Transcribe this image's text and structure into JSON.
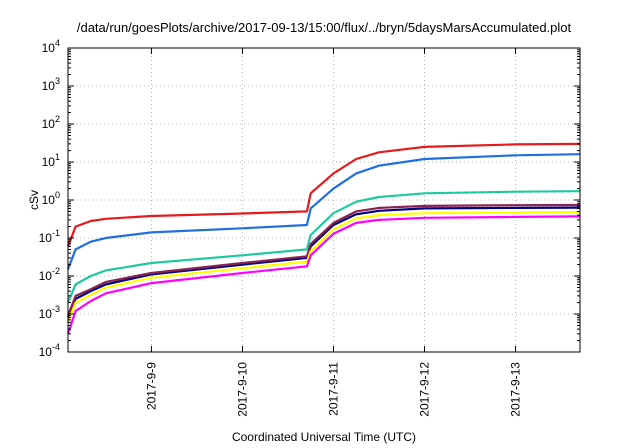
{
  "chart_data": {
    "type": "line",
    "title": "/data/run/goesPlots/archive/2017-09-13/15:00/flux/../bryn/5daysMarsAccumulated.plot",
    "xlabel": "Coordinated Universal Time (UTC)",
    "ylabel": "cSv",
    "yscale": "log",
    "ylim": [
      0.0001,
      10000
    ],
    "xlim": [
      "2017-09-08T02:00",
      "2017-09-13T17:00"
    ],
    "grid": true,
    "x_ticks": [
      "2017-9-9",
      "2017-9-10",
      "2017-9-11",
      "2017-9-12",
      "2017-9-13"
    ],
    "y_ticks": [
      {
        "base": "10",
        "exp": "-4"
      },
      {
        "base": "10",
        "exp": "-3"
      },
      {
        "base": "10",
        "exp": "-2"
      },
      {
        "base": "10",
        "exp": "-1"
      },
      {
        "base": "10",
        "exp": "0"
      },
      {
        "base": "10",
        "exp": "1"
      },
      {
        "base": "10",
        "exp": "2"
      },
      {
        "base": "10",
        "exp": "3"
      },
      {
        "base": "10",
        "exp": "4"
      }
    ],
    "series": [
      {
        "color": "#e41a1c",
        "x": [
          "2017-09-08T02:00",
          "2017-09-08T04:00",
          "2017-09-08T08:00",
          "2017-09-08T12:00",
          "2017-09-09T00:00",
          "2017-09-10T00:00",
          "2017-09-10T17:00",
          "2017-09-10T18:00",
          "2017-09-11T00:00",
          "2017-09-11T06:00",
          "2017-09-11T12:00",
          "2017-09-12T00:00",
          "2017-09-13T00:00",
          "2017-09-13T17:00"
        ],
        "y": [
          0.06,
          0.2,
          0.28,
          0.32,
          0.38,
          0.44,
          0.5,
          1.5,
          5,
          12,
          18,
          25,
          29,
          30
        ]
      },
      {
        "color": "#1f6fe0",
        "x": [
          "2017-09-08T02:00",
          "2017-09-08T04:00",
          "2017-09-08T08:00",
          "2017-09-08T12:00",
          "2017-09-09T00:00",
          "2017-09-10T00:00",
          "2017-09-10T17:00",
          "2017-09-10T18:00",
          "2017-09-11T00:00",
          "2017-09-11T06:00",
          "2017-09-11T12:00",
          "2017-09-12T00:00",
          "2017-09-13T00:00",
          "2017-09-13T17:00"
        ],
        "y": [
          0.015,
          0.05,
          0.08,
          0.1,
          0.14,
          0.18,
          0.22,
          0.6,
          2,
          5,
          8,
          12,
          15,
          16
        ]
      },
      {
        "color": "#1fc9a0",
        "x": [
          "2017-09-08T02:00",
          "2017-09-08T04:00",
          "2017-09-08T08:00",
          "2017-09-08T12:00",
          "2017-09-09T00:00",
          "2017-09-10T00:00",
          "2017-09-10T17:00",
          "2017-09-10T18:00",
          "2017-09-11T00:00",
          "2017-09-11T06:00",
          "2017-09-11T12:00",
          "2017-09-12T00:00",
          "2017-09-13T00:00",
          "2017-09-13T17:00"
        ],
        "y": [
          0.002,
          0.006,
          0.01,
          0.014,
          0.022,
          0.035,
          0.05,
          0.12,
          0.45,
          0.9,
          1.2,
          1.5,
          1.65,
          1.7
        ]
      },
      {
        "color": "#000080",
        "x": [
          "2017-09-08T02:00",
          "2017-09-08T04:00",
          "2017-09-08T08:00",
          "2017-09-08T12:00",
          "2017-09-09T00:00",
          "2017-09-10T00:00",
          "2017-09-10T17:00",
          "2017-09-10T18:00",
          "2017-09-11T00:00",
          "2017-09-11T06:00",
          "2017-09-11T12:00",
          "2017-09-12T00:00",
          "2017-09-13T00:00",
          "2017-09-13T17:00"
        ],
        "y": [
          0.0008,
          0.0025,
          0.004,
          0.006,
          0.011,
          0.02,
          0.03,
          0.06,
          0.22,
          0.42,
          0.52,
          0.6,
          0.62,
          0.63
        ]
      },
      {
        "color": "#8b2252",
        "x": [
          "2017-09-08T02:00",
          "2017-09-08T04:00",
          "2017-09-08T08:00",
          "2017-09-08T12:00",
          "2017-09-09T00:00",
          "2017-09-10T00:00",
          "2017-09-10T17:00",
          "2017-09-10T18:00",
          "2017-09-11T00:00",
          "2017-09-11T06:00",
          "2017-09-11T12:00",
          "2017-09-12T00:00",
          "2017-09-13T00:00",
          "2017-09-13T17:00"
        ],
        "y": [
          0.0009,
          0.003,
          0.0045,
          0.007,
          0.012,
          0.022,
          0.033,
          0.07,
          0.25,
          0.5,
          0.62,
          0.7,
          0.73,
          0.74
        ]
      },
      {
        "color": "#ffff00",
        "x": [
          "2017-09-08T02:00",
          "2017-09-08T04:00",
          "2017-09-08T08:00",
          "2017-09-08T12:00",
          "2017-09-09T00:00",
          "2017-09-10T00:00",
          "2017-09-10T17:00",
          "2017-09-10T18:00",
          "2017-09-11T00:00",
          "2017-09-11T06:00",
          "2017-09-11T12:00",
          "2017-09-12T00:00",
          "2017-09-13T00:00",
          "2017-09-13T17:00"
        ],
        "y": [
          0.0006,
          0.002,
          0.0032,
          0.005,
          0.009,
          0.016,
          0.024,
          0.045,
          0.17,
          0.33,
          0.4,
          0.45,
          0.47,
          0.48
        ]
      },
      {
        "color": "#ff00ff",
        "x": [
          "2017-09-08T02:00",
          "2017-09-08T04:00",
          "2017-09-08T08:00",
          "2017-09-08T12:00",
          "2017-09-09T00:00",
          "2017-09-10T00:00",
          "2017-09-10T17:00",
          "2017-09-10T18:00",
          "2017-09-11T00:00",
          "2017-09-11T06:00",
          "2017-09-11T12:00",
          "2017-09-12T00:00",
          "2017-09-13T00:00",
          "2017-09-13T17:00"
        ],
        "y": [
          0.0003,
          0.0012,
          0.0022,
          0.0035,
          0.0065,
          0.012,
          0.018,
          0.035,
          0.13,
          0.25,
          0.3,
          0.34,
          0.36,
          0.37
        ]
      }
    ]
  }
}
